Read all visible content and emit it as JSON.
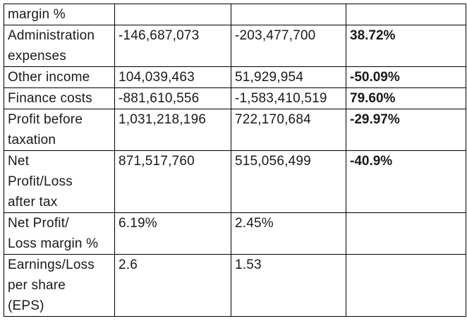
{
  "table": {
    "rows": [
      {
        "lines": [
          "margin %"
        ],
        "v2025": "",
        "v2024": "",
        "change": ""
      },
      {
        "lines": [
          "Administration",
          "expenses"
        ],
        "v2025": "-146,687,073",
        "v2024": "-203,477,700",
        "change": "38.72%"
      },
      {
        "lines": [
          "Other income"
        ],
        "v2025": "104,039,463",
        "v2024": "51,929,954",
        "change": "-50.09%"
      },
      {
        "lines": [
          "Finance costs"
        ],
        "v2025": "-881,610,556",
        "v2024": "-1,583,410,519",
        "change": "79.60%"
      },
      {
        "lines": [
          "Profit before",
          "taxation"
        ],
        "v2025": "1,031,218,196",
        "v2024": "722,170,684",
        "change": "-29.97%"
      },
      {
        "lines": [
          "Net",
          "Profit/Loss",
          "after tax"
        ],
        "v2025": "871,517,760",
        "v2024": "515,056,499",
        "change": "-40.9%"
      },
      {
        "lines": [
          "Net Profit/",
          "Loss margin %"
        ],
        "v2025": "6.19%",
        "v2024": "2.45%",
        "change": ""
      },
      {
        "lines": [
          "Earnings/Loss",
          "per share",
          "(EPS)"
        ],
        "v2025": "2.6",
        "v2024": "1.53",
        "change": ""
      }
    ]
  }
}
